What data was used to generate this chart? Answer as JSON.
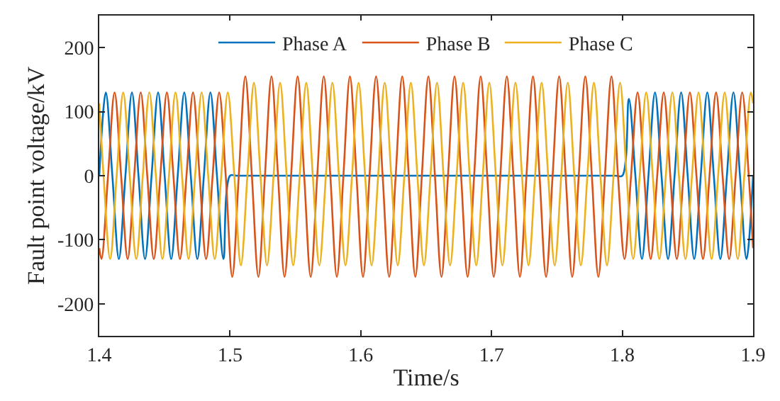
{
  "chart_data": {
    "type": "line",
    "xlabel": "Time/s",
    "ylabel": "Fault point voltage/kV",
    "xlim": [
      1.4,
      1.9
    ],
    "xticks": [
      1.4,
      1.5,
      1.6,
      1.7,
      1.8,
      1.9
    ],
    "ylim": [
      -250,
      250
    ],
    "yticks": [
      -200,
      -100,
      0,
      100,
      200
    ],
    "grid": false,
    "legend": "top",
    "marker": "none",
    "line_style": "solid",
    "series": [
      {
        "name": "Phase A",
        "color": "#0072bd",
        "x": [
          1.4,
          1.405,
          1.41,
          1.415,
          1.42,
          1.425,
          1.43,
          1.435,
          1.44,
          1.445,
          1.45,
          1.455,
          1.46,
          1.465,
          1.47,
          1.475,
          1.48,
          1.485,
          1.49,
          1.495,
          1.5,
          1.505,
          1.51,
          1.79,
          1.795,
          1.8,
          1.805,
          1.81,
          1.815,
          1.82,
          1.825,
          1.83,
          1.835,
          1.84,
          1.845,
          1.85,
          1.855,
          1.86,
          1.865,
          1.87,
          1.875,
          1.88,
          1.885,
          1.89,
          1.895,
          1.9
        ],
        "values": [
          0,
          130,
          0,
          -130,
          0,
          130,
          0,
          -130,
          0,
          130,
          0,
          -130,
          0,
          130,
          0,
          -130,
          0,
          130,
          0,
          -130,
          0,
          0,
          0,
          0,
          0,
          0,
          120,
          0,
          -130,
          0,
          130,
          0,
          -130,
          0,
          130,
          0,
          -130,
          0,
          130,
          0,
          -130,
          0,
          130,
          0,
          -130,
          0
        ]
      },
      {
        "name": "Phase B",
        "color": "#d95319",
        "x": [
          1.4,
          1.4017,
          1.4067,
          1.4117,
          1.4167,
          1.4217,
          1.4267,
          1.4317,
          1.4367,
          1.4417,
          1.4467,
          1.4517,
          1.4567,
          1.4617,
          1.4667,
          1.4717,
          1.4767,
          1.4817,
          1.4867,
          1.4917,
          1.4967,
          1.5017,
          1.5067,
          1.5117,
          1.5167,
          1.5217,
          1.5267,
          1.5317,
          1.5367,
          1.5417,
          1.5467,
          1.5517,
          1.5567,
          1.5617,
          1.5667,
          1.5717,
          1.5767,
          1.5817,
          1.5867,
          1.5917,
          1.5967,
          1.6017,
          1.6067,
          1.6117,
          1.6167,
          1.6217,
          1.6267,
          1.6317,
          1.6367,
          1.6417,
          1.6467,
          1.6517,
          1.6567,
          1.6617,
          1.6667,
          1.6717,
          1.6767,
          1.6817,
          1.6867,
          1.6917,
          1.6967,
          1.7017,
          1.7067,
          1.7117,
          1.7167,
          1.7217,
          1.7267,
          1.7317,
          1.7367,
          1.7417,
          1.7467,
          1.7517,
          1.7567,
          1.7617,
          1.7667,
          1.7717,
          1.7767,
          1.7817,
          1.7867,
          1.7917,
          1.7967,
          1.8017,
          1.8067,
          1.8117,
          1.8167,
          1.8217,
          1.8267,
          1.8317,
          1.8367,
          1.8417,
          1.8467,
          1.8517,
          1.8567,
          1.8617,
          1.8667,
          1.8717,
          1.8767,
          1.8817,
          1.8867,
          1.8917,
          1.8967,
          1.9
        ],
        "values": [
          -113,
          -130,
          0,
          130,
          0,
          -130,
          0,
          130,
          0,
          -130,
          0,
          130,
          0,
          -130,
          0,
          130,
          0,
          -130,
          0,
          130,
          0,
          -158,
          0,
          155,
          0,
          -158,
          0,
          155,
          0,
          -158,
          0,
          155,
          0,
          -158,
          0,
          155,
          0,
          -158,
          0,
          155,
          0,
          -158,
          0,
          155,
          0,
          -158,
          0,
          155,
          0,
          -158,
          0,
          155,
          0,
          -158,
          0,
          155,
          0,
          -158,
          0,
          155,
          0,
          -158,
          0,
          155,
          0,
          -158,
          0,
          155,
          0,
          -158,
          0,
          155,
          0,
          -158,
          0,
          155,
          0,
          -158,
          0,
          155,
          0,
          -130,
          0,
          130,
          0,
          -130,
          0,
          130,
          0,
          -130,
          0,
          130,
          0,
          -130,
          0,
          130,
          0,
          -130,
          0,
          130,
          0,
          -113
        ]
      },
      {
        "name": "Phase C",
        "color": "#edb120",
        "x": [
          1.4,
          1.4033,
          1.4083,
          1.4133,
          1.4183,
          1.4233,
          1.4283,
          1.4333,
          1.4383,
          1.4433,
          1.4483,
          1.4533,
          1.4583,
          1.4633,
          1.4683,
          1.4733,
          1.4783,
          1.4833,
          1.4883,
          1.4933,
          1.4983,
          1.5033,
          1.5083,
          1.5133,
          1.5183,
          1.5233,
          1.5283,
          1.5333,
          1.5383,
          1.5433,
          1.5483,
          1.5533,
          1.5583,
          1.5633,
          1.5683,
          1.5733,
          1.5783,
          1.5833,
          1.5883,
          1.5933,
          1.5983,
          1.6033,
          1.6083,
          1.6133,
          1.6183,
          1.6233,
          1.6283,
          1.6333,
          1.6383,
          1.6433,
          1.6483,
          1.6533,
          1.6583,
          1.6633,
          1.6683,
          1.6733,
          1.6783,
          1.6833,
          1.6883,
          1.6933,
          1.6983,
          1.7033,
          1.7083,
          1.7133,
          1.7183,
          1.7233,
          1.7283,
          1.7333,
          1.7383,
          1.7433,
          1.7483,
          1.7533,
          1.7583,
          1.7633,
          1.7683,
          1.7733,
          1.7783,
          1.7833,
          1.7883,
          1.7933,
          1.7983,
          1.8033,
          1.8083,
          1.8133,
          1.8183,
          1.8233,
          1.8283,
          1.8333,
          1.8383,
          1.8433,
          1.8483,
          1.8533,
          1.8583,
          1.8633,
          1.8683,
          1.8733,
          1.8783,
          1.8833,
          1.8883,
          1.8933,
          1.8983,
          1.9
        ],
        "values": [
          113,
          0,
          -130,
          0,
          130,
          0,
          -130,
          0,
          130,
          0,
          -130,
          0,
          130,
          0,
          -130,
          0,
          130,
          0,
          -130,
          0,
          130,
          0,
          -140,
          0,
          145,
          0,
          -140,
          0,
          145,
          0,
          -140,
          0,
          145,
          0,
          -140,
          0,
          145,
          0,
          -140,
          0,
          145,
          0,
          -140,
          0,
          145,
          0,
          -140,
          0,
          145,
          0,
          -140,
          0,
          145,
          0,
          -140,
          0,
          145,
          0,
          -140,
          0,
          145,
          0,
          -140,
          0,
          145,
          0,
          -140,
          0,
          145,
          0,
          -140,
          0,
          145,
          0,
          -140,
          0,
          145,
          0,
          -140,
          0,
          145,
          0,
          -130,
          0,
          130,
          0,
          -130,
          0,
          130,
          0,
          -130,
          0,
          130,
          0,
          -130,
          0,
          130,
          0,
          -130,
          0,
          130,
          113
        ]
      }
    ]
  }
}
